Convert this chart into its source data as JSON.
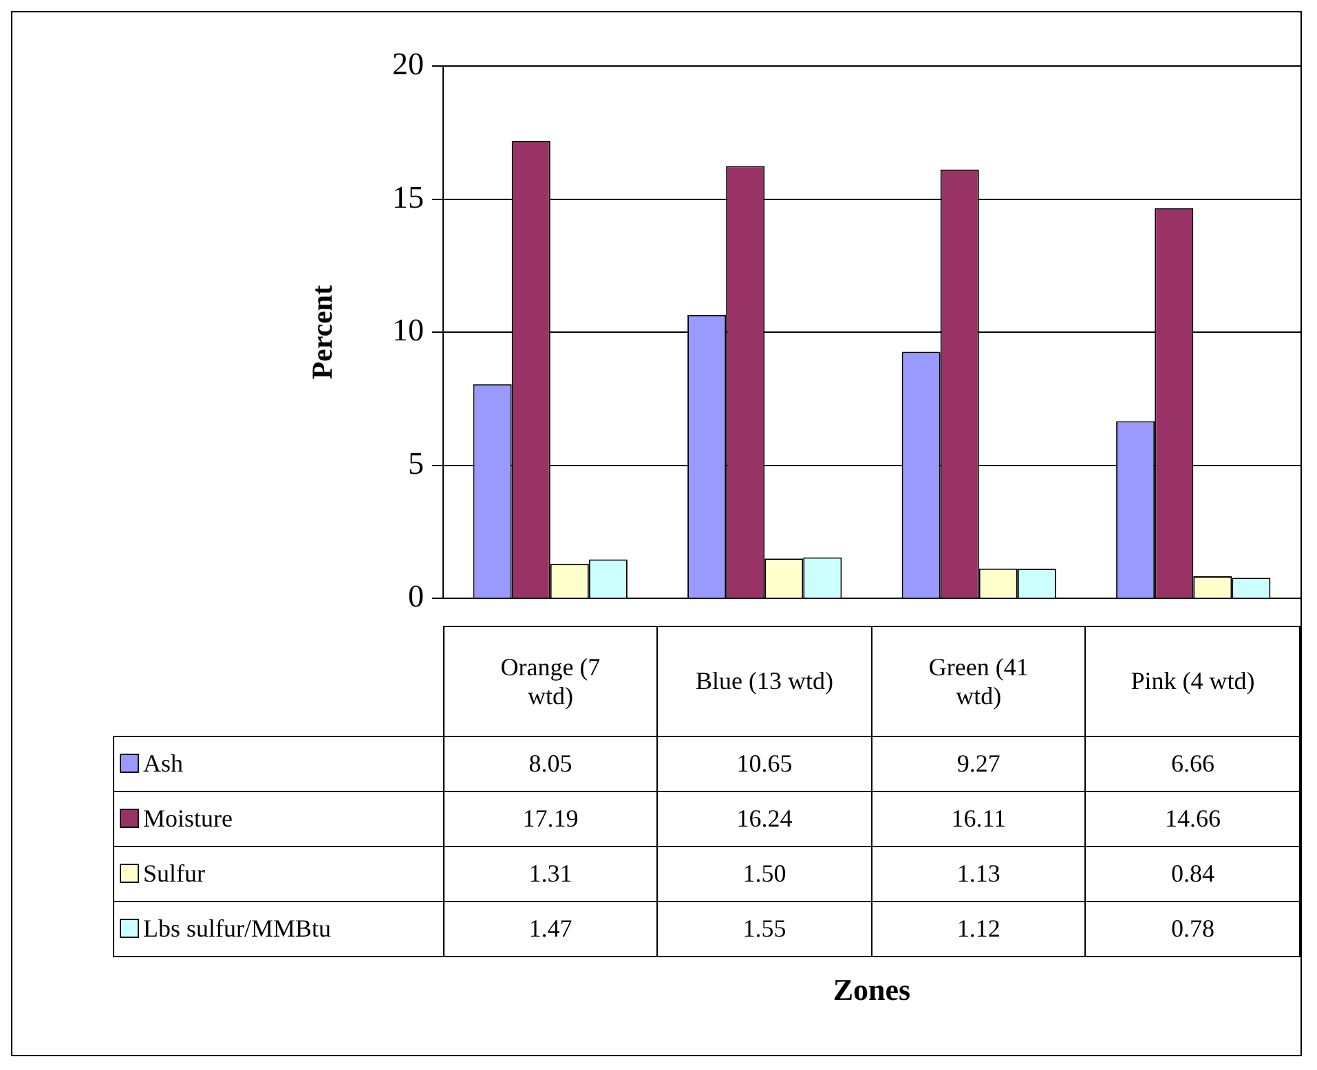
{
  "chart_data": {
    "type": "bar",
    "annotations": [
      "Zones"
    ],
    "ylabel": "Percent",
    "categories": [
      "Orange (7 wtd)",
      "Blue (13 wtd)",
      "Green (41 wtd)",
      "Pink (4 wtd)"
    ],
    "series": [
      {
        "name": "Ash",
        "color": "#9999ff",
        "values": [
          8.05,
          10.65,
          9.27,
          6.66
        ],
        "value_labels": [
          "8.05",
          "10.65",
          "9.27",
          "6.66"
        ]
      },
      {
        "name": "Moisture",
        "color": "#993366",
        "values": [
          17.19,
          16.24,
          16.11,
          14.66
        ],
        "value_labels": [
          "17.19",
          "16.24",
          "16.11",
          "14.66"
        ]
      },
      {
        "name": "Sulfur",
        "color": "#ffffcc",
        "values": [
          1.31,
          1.5,
          1.13,
          0.84
        ],
        "value_labels": [
          "1.31",
          "1.50",
          "1.13",
          "0.84"
        ]
      },
      {
        "name": "Lbs sulfur/MMBtu",
        "color": "#ccffff",
        "values": [
          1.47,
          1.55,
          1.12,
          0.78
        ],
        "value_labels": [
          "1.47",
          "1.55",
          "1.12",
          "0.78"
        ]
      }
    ],
    "ylim": [
      0,
      20
    ],
    "yticks": [
      0,
      5,
      10,
      15,
      20
    ],
    "grid": "y",
    "legend": "bottom"
  }
}
